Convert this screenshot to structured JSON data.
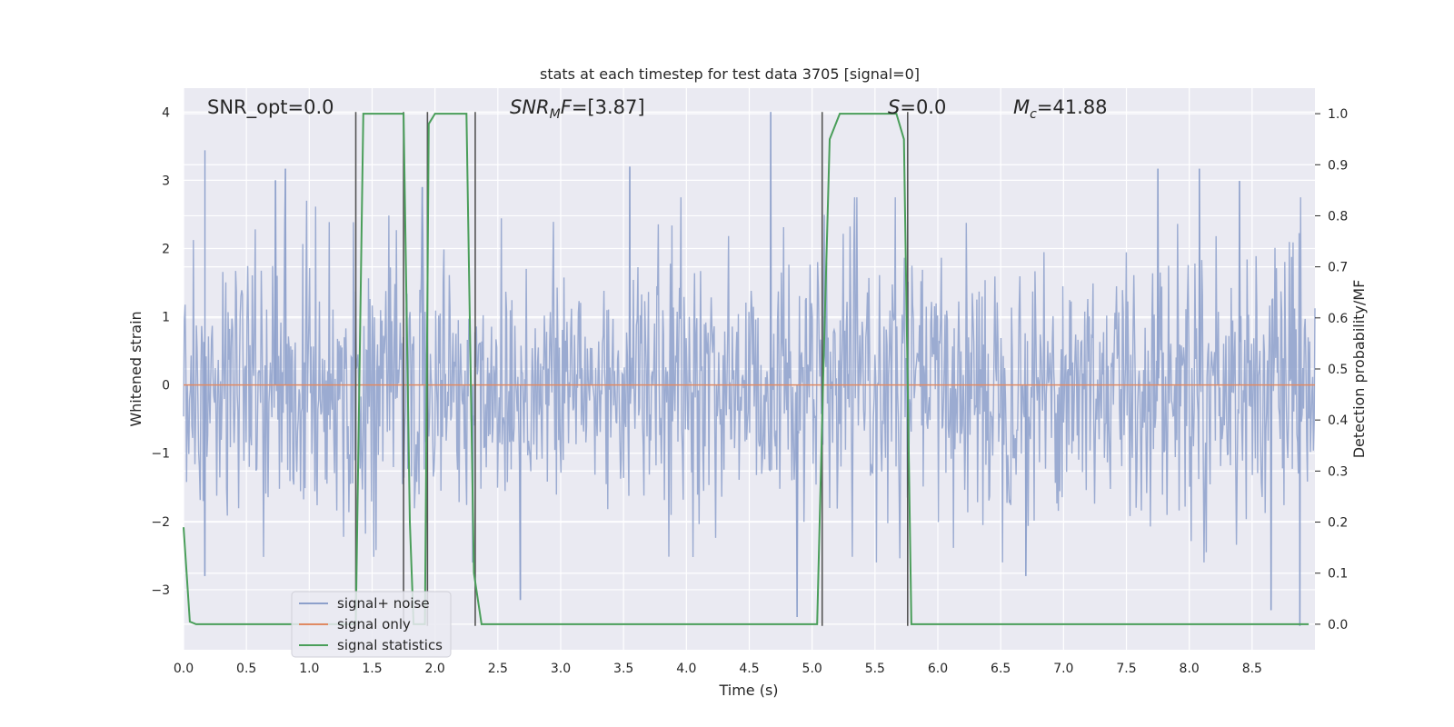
{
  "chart_data": {
    "type": "line",
    "title": "stats at each timestep for test data 3705 [signal=0]",
    "xlabel": "Time (s)",
    "ylabel": "Whitened strain",
    "y2label": "Detection probability/MF",
    "xlim": [
      0.0,
      9.0
    ],
    "ylim": [
      -3.88,
      4.35
    ],
    "y2lim": [
      -0.05,
      1.05
    ],
    "x_ticks": [
      "0.0",
      "0.5",
      "1.0",
      "1.5",
      "2.0",
      "2.5",
      "3.0",
      "3.5",
      "4.0",
      "4.5",
      "5.0",
      "5.5",
      "6.0",
      "6.5",
      "7.0",
      "7.5",
      "8.0",
      "8.5"
    ],
    "y_ticks": [
      "−3",
      "−2",
      "−1",
      "0",
      "1",
      "2",
      "3",
      "4"
    ],
    "y2_ticks": [
      "0.0",
      "0.1",
      "0.2",
      "0.3",
      "0.4",
      "0.5",
      "0.6",
      "0.7",
      "0.8",
      "0.9",
      "1.0"
    ],
    "grid": true,
    "legend_position": "lower-left",
    "annotations": {
      "snr_opt": "SNR_opt=0.0",
      "snr_mf_base": "SNR",
      "snr_mf_sub": "M",
      "snr_mf_rest": "F=[3.87]",
      "s_italic": "S",
      "s_rest": "=0.0",
      "mc_base": "M",
      "mc_sub": "c",
      "mc_rest": "=41.88"
    },
    "series": [
      {
        "name": "signal+ noise",
        "color": "#8da0cb",
        "noise_description": "whitened strain noise, roughly Gaussian, sampled densely across 0-9 s",
        "peaks": [
          {
            "x": 0.17,
            "y": 3.44
          },
          {
            "x": 0.73,
            "y": 3.0
          },
          {
            "x": 0.81,
            "y": 3.17
          },
          {
            "x": 1.9,
            "y": 2.9
          },
          {
            "x": 3.55,
            "y": 3.2
          },
          {
            "x": 4.67,
            "y": 4.0
          },
          {
            "x": 7.75,
            "y": 3.17
          },
          {
            "x": 8.08,
            "y": 3.17
          },
          {
            "x": 8.4,
            "y": 2.99
          }
        ],
        "troughs": [
          {
            "x": 0.17,
            "y": -2.8
          },
          {
            "x": 2.3,
            "y": -2.6
          },
          {
            "x": 2.68,
            "y": -3.15
          },
          {
            "x": 4.88,
            "y": -3.4
          },
          {
            "x": 6.7,
            "y": -2.8
          },
          {
            "x": 8.65,
            "y": -3.3
          },
          {
            "x": 8.88,
            "y": -3.53
          }
        ]
      },
      {
        "name": "signal only",
        "color": "#e08a63",
        "x": [
          0.0,
          9.0
        ],
        "y": [
          0.0,
          0.0
        ]
      },
      {
        "name": "signal statistics",
        "color": "#4a9e5a",
        "axis": "right",
        "x": [
          0.0,
          0.05,
          0.1,
          1.37,
          1.43,
          1.75,
          1.8,
          1.83,
          1.92,
          1.95,
          2.0,
          2.05,
          2.25,
          2.31,
          2.37,
          2.43,
          5.04,
          5.09,
          5.14,
          5.22,
          5.67,
          5.73,
          5.79,
          5.83,
          8.95
        ],
        "y": [
          0.19,
          0.005,
          0.0,
          0.0,
          1.0,
          1.0,
          0.2,
          0.0,
          0.0,
          0.98,
          1.0,
          1.0,
          1.0,
          0.1,
          0.0,
          0.0,
          0.0,
          0.5,
          0.95,
          1.0,
          1.0,
          0.95,
          0.0,
          0.0,
          0.0
        ]
      }
    ],
    "vertical_lines": {
      "color": "#555555",
      "x": [
        1.37,
        1.75,
        1.94,
        2.32,
        5.08,
        5.76
      ],
      "top": 4.0,
      "bottom": -3.53
    }
  }
}
